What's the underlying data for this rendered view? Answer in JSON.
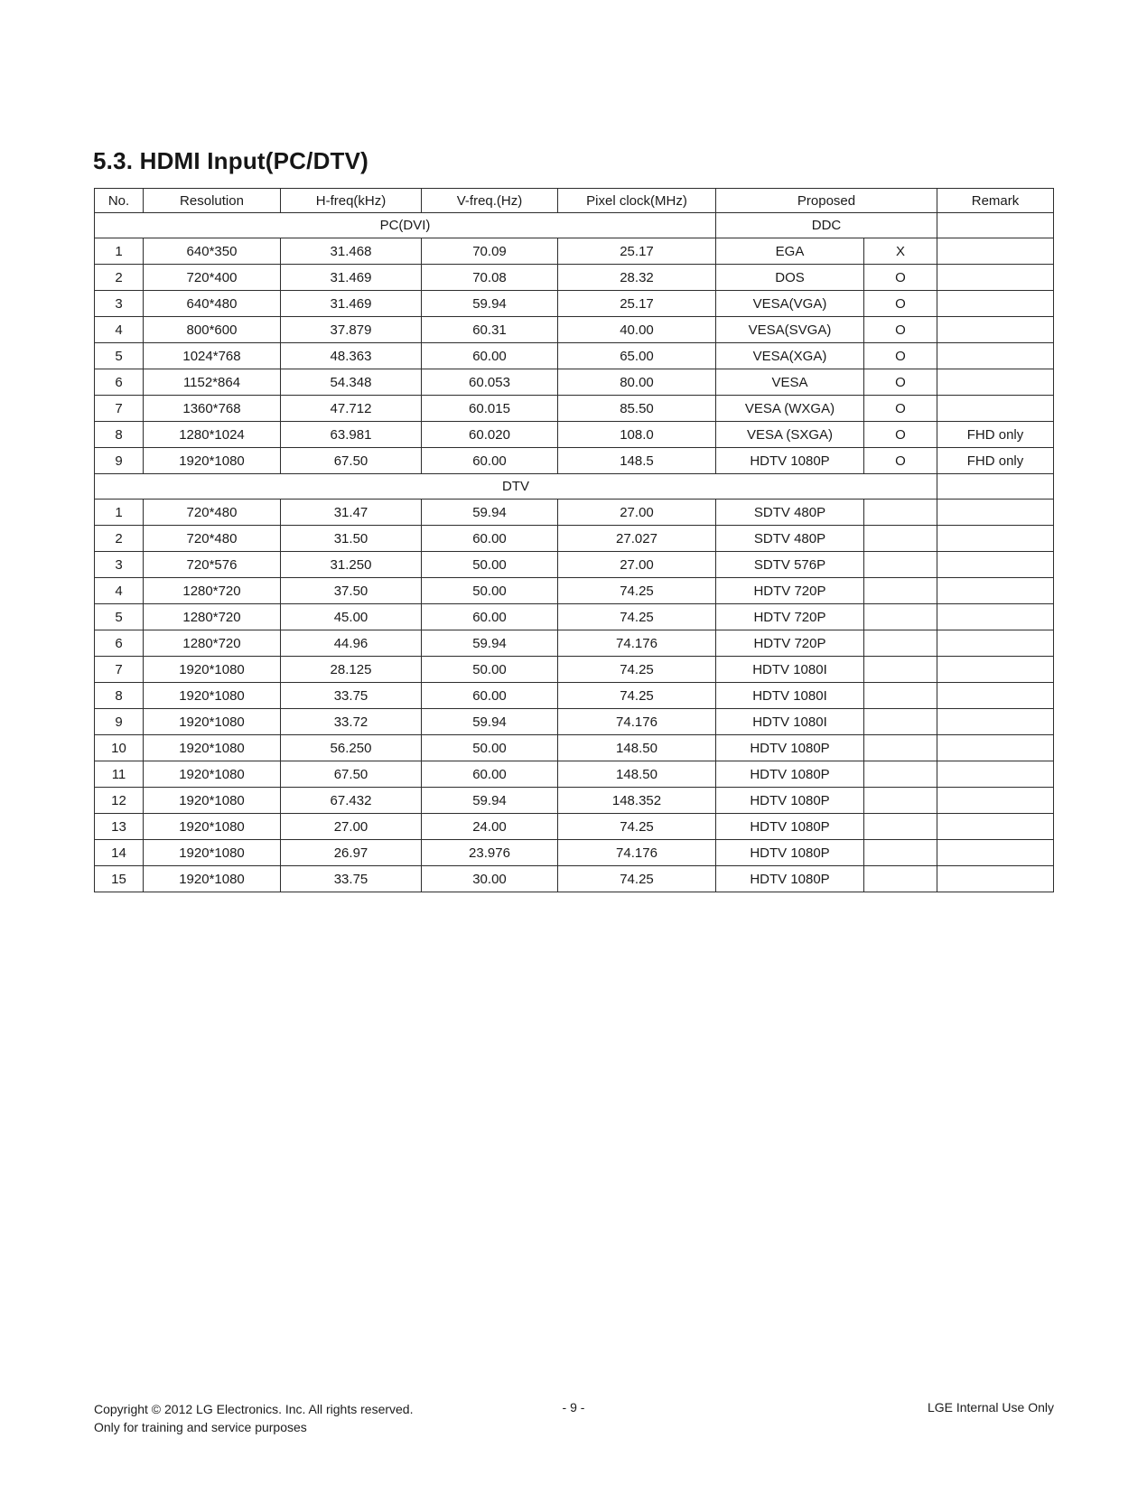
{
  "page": {
    "title": "5.3. HDMI Input(PC/DTV)"
  },
  "table": {
    "headers": [
      "No.",
      "Resolution",
      "H-freq(kHz)",
      "V-freq.(Hz)",
      "Pixel clock(MHz)",
      "Proposed",
      "Remark"
    ],
    "pc_section": {
      "label": "PC(DVI)",
      "ddc_label": "DDC"
    },
    "pc_rows": [
      {
        "no": "1",
        "resolution": "640*350",
        "h_freq": "31.468",
        "v_freq": "70.09",
        "pixel_clock": "25.17",
        "proposed": "EGA",
        "ddc": "X",
        "remark": ""
      },
      {
        "no": "2",
        "resolution": "720*400",
        "h_freq": "31.469",
        "v_freq": "70.08",
        "pixel_clock": "28.32",
        "proposed": "DOS",
        "ddc": "O",
        "remark": ""
      },
      {
        "no": "3",
        "resolution": "640*480",
        "h_freq": "31.469",
        "v_freq": "59.94",
        "pixel_clock": "25.17",
        "proposed": "VESA(VGA)",
        "ddc": "O",
        "remark": ""
      },
      {
        "no": "4",
        "resolution": "800*600",
        "h_freq": "37.879",
        "v_freq": "60.31",
        "pixel_clock": "40.00",
        "proposed": "VESA(SVGA)",
        "ddc": "O",
        "remark": ""
      },
      {
        "no": "5",
        "resolution": "1024*768",
        "h_freq": "48.363",
        "v_freq": "60.00",
        "pixel_clock": "65.00",
        "proposed": "VESA(XGA)",
        "ddc": "O",
        "remark": ""
      },
      {
        "no": "6",
        "resolution": "1152*864",
        "h_freq": "54.348",
        "v_freq": "60.053",
        "pixel_clock": "80.00",
        "proposed": "VESA",
        "ddc": "O",
        "remark": ""
      },
      {
        "no": "7",
        "resolution": "1360*768",
        "h_freq": "47.712",
        "v_freq": "60.015",
        "pixel_clock": "85.50",
        "proposed": "VESA (WXGA)",
        "ddc": "O",
        "remark": ""
      },
      {
        "no": "8",
        "resolution": "1280*1024",
        "h_freq": "63.981",
        "v_freq": "60.020",
        "pixel_clock": "108.0",
        "proposed": "VESA (SXGA)",
        "ddc": "O",
        "remark": "FHD only"
      },
      {
        "no": "9",
        "resolution": "1920*1080",
        "h_freq": "67.50",
        "v_freq": "60.00",
        "pixel_clock": "148.5",
        "proposed": "HDTV 1080P",
        "ddc": "O",
        "remark": "FHD only"
      }
    ],
    "dtv_section": {
      "label": "DTV"
    },
    "dtv_rows": [
      {
        "no": "1",
        "resolution": "720*480",
        "h_freq": "31.47",
        "v_freq": "59.94",
        "pixel_clock": "27.00",
        "proposed": "SDTV 480P",
        "ddc": "",
        "remark": ""
      },
      {
        "no": "2",
        "resolution": "720*480",
        "h_freq": "31.50",
        "v_freq": "60.00",
        "pixel_clock": "27.027",
        "proposed": "SDTV 480P",
        "ddc": "",
        "remark": ""
      },
      {
        "no": "3",
        "resolution": "720*576",
        "h_freq": "31.250",
        "v_freq": "50.00",
        "pixel_clock": "27.00",
        "proposed": "SDTV 576P",
        "ddc": "",
        "remark": ""
      },
      {
        "no": "4",
        "resolution": "1280*720",
        "h_freq": "37.50",
        "v_freq": "50.00",
        "pixel_clock": "74.25",
        "proposed": "HDTV 720P",
        "ddc": "",
        "remark": ""
      },
      {
        "no": "5",
        "resolution": "1280*720",
        "h_freq": "45.00",
        "v_freq": "60.00",
        "pixel_clock": "74.25",
        "proposed": "HDTV 720P",
        "ddc": "",
        "remark": ""
      },
      {
        "no": "6",
        "resolution": "1280*720",
        "h_freq": "44.96",
        "v_freq": "59.94",
        "pixel_clock": "74.176",
        "proposed": "HDTV 720P",
        "ddc": "",
        "remark": ""
      },
      {
        "no": "7",
        "resolution": "1920*1080",
        "h_freq": "28.125",
        "v_freq": "50.00",
        "pixel_clock": "74.25",
        "proposed": "HDTV 1080I",
        "ddc": "",
        "remark": ""
      },
      {
        "no": "8",
        "resolution": "1920*1080",
        "h_freq": "33.75",
        "v_freq": "60.00",
        "pixel_clock": "74.25",
        "proposed": "HDTV 1080I",
        "ddc": "",
        "remark": ""
      },
      {
        "no": "9",
        "resolution": "1920*1080",
        "h_freq": "33.72",
        "v_freq": "59.94",
        "pixel_clock": "74.176",
        "proposed": "HDTV 1080I",
        "ddc": "",
        "remark": ""
      },
      {
        "no": "10",
        "resolution": "1920*1080",
        "h_freq": "56.250",
        "v_freq": "50.00",
        "pixel_clock": "148.50",
        "proposed": "HDTV 1080P",
        "ddc": "",
        "remark": ""
      },
      {
        "no": "11",
        "resolution": "1920*1080",
        "h_freq": "67.50",
        "v_freq": "60.00",
        "pixel_clock": "148.50",
        "proposed": "HDTV 1080P",
        "ddc": "",
        "remark": ""
      },
      {
        "no": "12",
        "resolution": "1920*1080",
        "h_freq": "67.432",
        "v_freq": "59.94",
        "pixel_clock": "148.352",
        "proposed": "HDTV 1080P",
        "ddc": "",
        "remark": ""
      },
      {
        "no": "13",
        "resolution": "1920*1080",
        "h_freq": "27.00",
        "v_freq": "24.00",
        "pixel_clock": "74.25",
        "proposed": "HDTV 1080P",
        "ddc": "",
        "remark": ""
      },
      {
        "no": "14",
        "resolution": "1920*1080",
        "h_freq": "26.97",
        "v_freq": "23.976",
        "pixel_clock": "74.176",
        "proposed": "HDTV 1080P",
        "ddc": "",
        "remark": ""
      },
      {
        "no": "15",
        "resolution": "1920*1080",
        "h_freq": "33.75",
        "v_freq": "30.00",
        "pixel_clock": "74.25",
        "proposed": "HDTV 1080P",
        "ddc": "",
        "remark": ""
      }
    ]
  },
  "footer": {
    "copyright_line1": "Copyright © 2012 LG Electronics. Inc. All rights reserved.",
    "copyright_line2": "Only for training and service purposes",
    "page_number": "- 9 -",
    "right_note": "LGE Internal Use Only"
  }
}
